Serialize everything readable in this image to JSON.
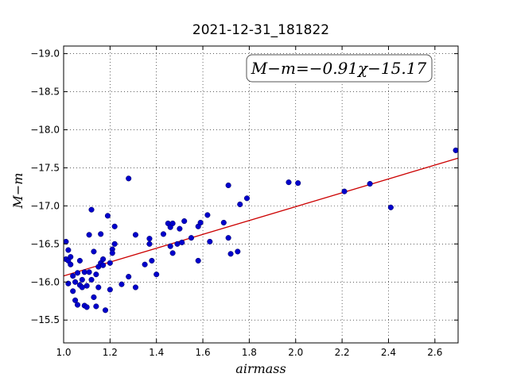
{
  "chart_data": {
    "type": "scatter",
    "title": "2021-12-31_181822",
    "xlabel": "airmass",
    "ylabel": "M−m",
    "xlim": [
      1.0,
      2.7
    ],
    "ylim": [
      -19.1,
      -15.2
    ],
    "y_inverted": true,
    "grid": true,
    "grid_style": "dotted",
    "x_ticks": [
      1.0,
      1.2,
      1.4,
      1.6,
      1.8,
      2.0,
      2.2,
      2.4,
      2.6
    ],
    "x_tick_labels": [
      "1.0",
      "1.2",
      "1.4",
      "1.6",
      "1.8",
      "2.0",
      "2.2",
      "2.4",
      "2.6"
    ],
    "y_ticks": [
      -15.5,
      -16.0,
      -16.5,
      -17.0,
      -17.5,
      -18.0,
      -18.5,
      -19.0
    ],
    "y_tick_labels": [
      "−15.5",
      "−16.0",
      "−16.5",
      "−17.0",
      "−17.5",
      "−18.0",
      "−18.5",
      "−19.0"
    ],
    "annotation": "M−m=−0.91χ−15.17",
    "annotation_placement": "top-right",
    "point_color": "#0000cc",
    "line_color": "#cc0000",
    "fit": {
      "slope": -0.91,
      "intercept": -15.17,
      "x_range": [
        1.0,
        2.7
      ]
    },
    "points": [
      [
        1.01,
        -16.3
      ],
      [
        1.01,
        -16.53
      ],
      [
        1.02,
        -15.98
      ],
      [
        1.02,
        -16.28
      ],
      [
        1.02,
        -16.42
      ],
      [
        1.03,
        -16.23
      ],
      [
        1.03,
        -16.33
      ],
      [
        1.04,
        -15.88
      ],
      [
        1.04,
        -16.08
      ],
      [
        1.05,
        -15.76
      ],
      [
        1.05,
        -16.0
      ],
      [
        1.06,
        -15.7
      ],
      [
        1.06,
        -16.12
      ],
      [
        1.07,
        -15.96
      ],
      [
        1.07,
        -16.28
      ],
      [
        1.08,
        -15.93
      ],
      [
        1.08,
        -16.03
      ],
      [
        1.09,
        -15.69
      ],
      [
        1.09,
        -16.13
      ],
      [
        1.1,
        -15.67
      ],
      [
        1.1,
        -15.95
      ],
      [
        1.11,
        -16.62
      ],
      [
        1.11,
        -16.13
      ],
      [
        1.12,
        -16.03
      ],
      [
        1.12,
        -16.95
      ],
      [
        1.13,
        -16.4
      ],
      [
        1.13,
        -15.8
      ],
      [
        1.14,
        -15.68
      ],
      [
        1.14,
        -16.1
      ],
      [
        1.15,
        -15.93
      ],
      [
        1.15,
        -16.2
      ],
      [
        1.16,
        -16.25
      ],
      [
        1.16,
        -16.63
      ],
      [
        1.17,
        -16.3
      ],
      [
        1.17,
        -16.22
      ],
      [
        1.18,
        -15.63
      ],
      [
        1.19,
        -16.87
      ],
      [
        1.2,
        -15.9
      ],
      [
        1.2,
        -16.25
      ],
      [
        1.21,
        -16.43
      ],
      [
        1.21,
        -16.38
      ],
      [
        1.22,
        -16.73
      ],
      [
        1.22,
        -16.5
      ],
      [
        1.25,
        -15.97
      ],
      [
        1.28,
        -16.07
      ],
      [
        1.28,
        -17.36
      ],
      [
        1.31,
        -15.93
      ],
      [
        1.31,
        -16.62
      ],
      [
        1.35,
        -16.23
      ],
      [
        1.37,
        -16.5
      ],
      [
        1.37,
        -16.57
      ],
      [
        1.38,
        -16.28
      ],
      [
        1.4,
        -16.1
      ],
      [
        1.43,
        -16.63
      ],
      [
        1.45,
        -16.77
      ],
      [
        1.46,
        -16.47
      ],
      [
        1.46,
        -16.72
      ],
      [
        1.47,
        -16.38
      ],
      [
        1.47,
        -16.77
      ],
      [
        1.49,
        -16.5
      ],
      [
        1.5,
        -16.7
      ],
      [
        1.51,
        -16.52
      ],
      [
        1.52,
        -16.8
      ],
      [
        1.55,
        -16.58
      ],
      [
        1.58,
        -16.28
      ],
      [
        1.58,
        -16.73
      ],
      [
        1.59,
        -16.78
      ],
      [
        1.62,
        -16.88
      ],
      [
        1.63,
        -16.53
      ],
      [
        1.69,
        -16.78
      ],
      [
        1.71,
        -17.27
      ],
      [
        1.71,
        -16.58
      ],
      [
        1.72,
        -16.37
      ],
      [
        1.75,
        -16.4
      ],
      [
        1.76,
        -17.02
      ],
      [
        1.79,
        -17.1
      ],
      [
        1.97,
        -17.31
      ],
      [
        2.01,
        -17.3
      ],
      [
        2.21,
        -17.19
      ],
      [
        2.32,
        -17.29
      ],
      [
        2.41,
        -16.98
      ],
      [
        2.69,
        -17.73
      ]
    ]
  }
}
